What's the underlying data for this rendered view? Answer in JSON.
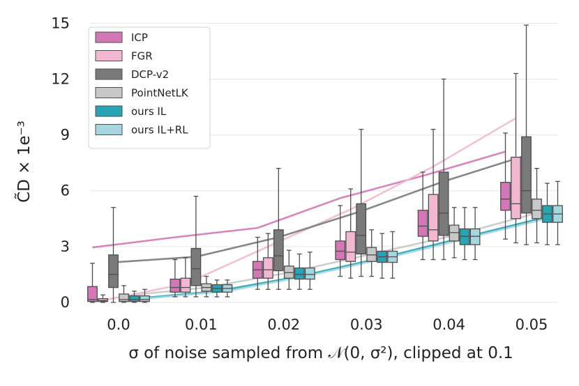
{
  "chart_data": {
    "type": "box",
    "categories": [
      "0.0",
      "0.01",
      "0.02",
      "0.03",
      "0.04",
      "0.05"
    ],
    "ylabel": "C̃D × 1e⁻³",
    "xlabel": "σ of noise sampled from 𝒩(0, σ²), clipped at 0.1",
    "ylim": [
      -0.6,
      15.5
    ],
    "yticks": [
      0,
      3,
      6,
      9,
      12,
      15
    ],
    "grid": "horizontal",
    "legend_position": "top-left",
    "series": [
      {
        "name": "ICP",
        "color": "#d477b6",
        "boxes": [
          {
            "whislo": 0.0,
            "q1": 0.05,
            "med": 0.15,
            "q3": 0.85,
            "whishi": 2.1
          },
          {
            "whislo": 0.3,
            "q1": 0.55,
            "med": 0.8,
            "q3": 1.25,
            "whishi": 2.3
          },
          {
            "whislo": 0.7,
            "q1": 1.3,
            "med": 1.75,
            "q3": 2.2,
            "whishi": 3.5
          },
          {
            "whislo": 1.4,
            "q1": 2.3,
            "med": 2.75,
            "q3": 3.3,
            "whishi": 5.2
          },
          {
            "whislo": 2.3,
            "q1": 3.55,
            "med": 4.1,
            "q3": 4.95,
            "whishi": 7.0
          },
          {
            "whislo": 3.4,
            "q1": 4.95,
            "med": 5.55,
            "q3": 6.45,
            "whishi": 9.1
          }
        ],
        "mean_line": [
          2.95,
          3.5,
          4.0,
          5.6,
          6.8,
          8.1
        ]
      },
      {
        "name": "FGR",
        "color": "#f2b8d1",
        "boxes": [
          {
            "whislo": 0.0,
            "q1": 0.05,
            "med": 0.1,
            "q3": 0.2,
            "whishi": 0.4
          },
          {
            "whislo": 0.3,
            "q1": 0.55,
            "med": 0.8,
            "q3": 1.3,
            "whishi": 2.4
          },
          {
            "whislo": 0.7,
            "q1": 1.3,
            "med": 1.75,
            "q3": 2.4,
            "whishi": 3.7
          },
          {
            "whislo": 1.3,
            "q1": 2.2,
            "med": 2.7,
            "q3": 3.8,
            "whishi": 6.1
          },
          {
            "whislo": 2.3,
            "q1": 3.3,
            "med": 3.9,
            "q3": 5.8,
            "whishi": 9.3
          },
          {
            "whislo": 3.2,
            "q1": 4.5,
            "med": 5.3,
            "q3": 7.8,
            "whishi": 12.3
          }
        ],
        "mean_line": [
          0.1,
          1.0,
          3.0,
          5.0,
          7.3,
          9.9
        ]
      },
      {
        "name": "DCP-v2",
        "color": "#7a7a7a",
        "boxes": [
          {
            "whislo": 0.0,
            "q1": 0.8,
            "med": 1.5,
            "q3": 2.55,
            "whishi": 5.1
          },
          {
            "whislo": 0.3,
            "q1": 0.9,
            "med": 1.8,
            "q3": 2.9,
            "whishi": 5.7
          },
          {
            "whislo": 0.7,
            "q1": 1.7,
            "med": 2.5,
            "q3": 3.9,
            "whishi": 7.2
          },
          {
            "whislo": 1.4,
            "q1": 2.6,
            "med": 3.6,
            "q3": 5.3,
            "whishi": 9.3
          },
          {
            "whislo": 2.3,
            "q1": 3.6,
            "med": 4.8,
            "q3": 7.0,
            "whishi": 12.0
          },
          {
            "whislo": 3.1,
            "q1": 4.8,
            "med": 6.0,
            "q3": 8.9,
            "whishi": 14.9
          }
        ],
        "mean_line": [
          2.15,
          2.45,
          3.5,
          4.9,
          6.5,
          7.9
        ]
      },
      {
        "name": "PointNetLK",
        "color": "#c8c8c8",
        "boxes": [
          {
            "whislo": 0.0,
            "q1": 0.05,
            "med": 0.15,
            "q3": 0.45,
            "whishi": 0.9
          },
          {
            "whislo": 0.3,
            "q1": 0.6,
            "med": 0.8,
            "q3": 1.0,
            "whishi": 1.4
          },
          {
            "whislo": 0.7,
            "q1": 1.3,
            "med": 1.6,
            "q3": 1.95,
            "whishi": 2.8
          },
          {
            "whislo": 1.4,
            "q1": 2.2,
            "med": 2.55,
            "q3": 2.95,
            "whishi": 3.9
          },
          {
            "whislo": 2.4,
            "q1": 3.3,
            "med": 3.75,
            "q3": 4.15,
            "whishi": 5.1
          },
          {
            "whislo": 3.2,
            "q1": 4.5,
            "med": 4.95,
            "q3": 5.55,
            "whishi": 7.2
          }
        ],
        "mean_line": [
          0.35,
          0.8,
          1.6,
          2.6,
          3.6,
          4.8
        ]
      },
      {
        "name": "ours IL",
        "color": "#2aa4b5",
        "boxes": [
          {
            "whislo": 0.0,
            "q1": 0.05,
            "med": 0.15,
            "q3": 0.35,
            "whishi": 0.6
          },
          {
            "whislo": 0.3,
            "q1": 0.55,
            "med": 0.75,
            "q3": 0.95,
            "whishi": 1.2
          },
          {
            "whislo": 0.7,
            "q1": 1.25,
            "med": 1.5,
            "q3": 1.85,
            "whishi": 2.6
          },
          {
            "whislo": 1.3,
            "q1": 2.15,
            "med": 2.45,
            "q3": 2.75,
            "whishi": 3.7
          },
          {
            "whislo": 2.3,
            "q1": 3.1,
            "med": 3.55,
            "q3": 3.95,
            "whishi": 5.1
          },
          {
            "whislo": 3.1,
            "q1": 4.3,
            "med": 4.75,
            "q3": 5.2,
            "whishi": 6.4
          }
        ],
        "mean_line": [
          0.2,
          0.6,
          1.4,
          2.4,
          3.5,
          4.6
        ]
      },
      {
        "name": "ours IL+RL",
        "color": "#a6d6df",
        "boxes": [
          {
            "whislo": 0.0,
            "q1": 0.05,
            "med": 0.15,
            "q3": 0.35,
            "whishi": 0.7
          },
          {
            "whislo": 0.3,
            "q1": 0.55,
            "med": 0.75,
            "q3": 0.95,
            "whishi": 1.2
          },
          {
            "whislo": 0.7,
            "q1": 1.25,
            "med": 1.5,
            "q3": 1.85,
            "whishi": 2.7
          },
          {
            "whislo": 1.3,
            "q1": 2.15,
            "med": 2.45,
            "q3": 2.75,
            "whishi": 3.8
          },
          {
            "whislo": 2.3,
            "q1": 3.1,
            "med": 3.55,
            "q3": 3.95,
            "whishi": 5.1
          },
          {
            "whislo": 3.1,
            "q1": 4.3,
            "med": 4.75,
            "q3": 5.2,
            "whishi": 6.5
          }
        ],
        "mean_line": [
          0.2,
          0.6,
          1.45,
          2.45,
          3.55,
          4.65
        ]
      }
    ]
  }
}
